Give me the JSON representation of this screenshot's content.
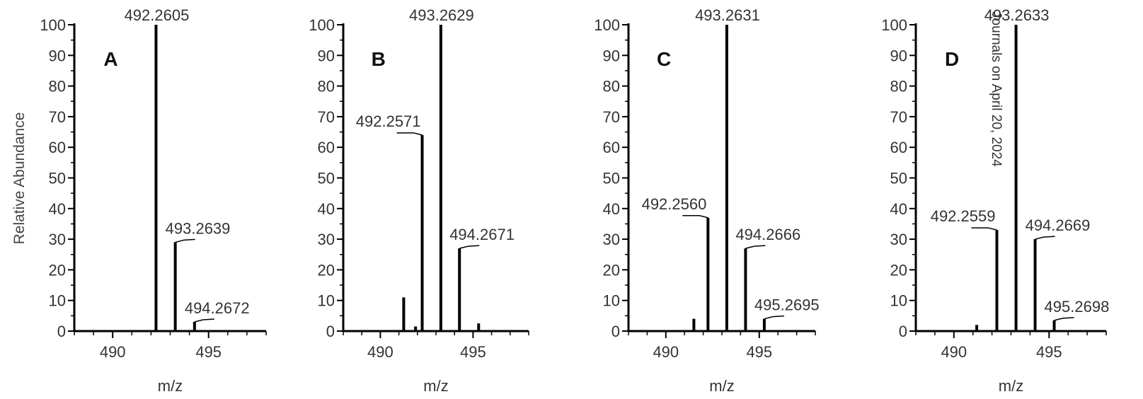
{
  "figure": {
    "ylabel": "Relative Abundance",
    "watermark": "Journals on April 20, 2024"
  },
  "chart_data": [
    {
      "type": "bar",
      "panel_label": "A",
      "xlabel": "m/z",
      "xlim": [
        488,
        498
      ],
      "ylim": [
        0,
        100
      ],
      "xticks": [
        490,
        495
      ],
      "yticks": [
        0,
        10,
        20,
        30,
        40,
        50,
        60,
        70,
        80,
        90,
        100
      ],
      "peaks": [
        {
          "mz": 492.2605,
          "abundance": 100,
          "label": "492.2605"
        },
        {
          "mz": 493.2639,
          "abundance": 29,
          "label": "493.2639"
        },
        {
          "mz": 494.2672,
          "abundance": 3,
          "label": "494.2672"
        }
      ]
    },
    {
      "type": "bar",
      "panel_label": "B",
      "xlabel": "m/z",
      "xlim": [
        488,
        498
      ],
      "ylim": [
        0,
        100
      ],
      "xticks": [
        490,
        495
      ],
      "yticks": [
        0,
        10,
        20,
        30,
        40,
        50,
        60,
        70,
        80,
        90,
        100
      ],
      "peaks": [
        {
          "mz": 491.26,
          "abundance": 11,
          "label": ""
        },
        {
          "mz": 491.9,
          "abundance": 1.5,
          "label": ""
        },
        {
          "mz": 492.2571,
          "abundance": 64,
          "label": "492.2571"
        },
        {
          "mz": 493.2629,
          "abundance": 100,
          "label": "493.2629"
        },
        {
          "mz": 494.2671,
          "abundance": 27,
          "label": "494.2671"
        },
        {
          "mz": 495.3,
          "abundance": 2.5,
          "label": ""
        }
      ]
    },
    {
      "type": "bar",
      "panel_label": "C",
      "xlabel": "m/z",
      "xlim": [
        488,
        498
      ],
      "ylim": [
        0,
        100
      ],
      "xticks": [
        490,
        495
      ],
      "yticks": [
        0,
        10,
        20,
        30,
        40,
        50,
        60,
        70,
        80,
        90,
        100
      ],
      "peaks": [
        {
          "mz": 491.5,
          "abundance": 4,
          "label": ""
        },
        {
          "mz": 492.256,
          "abundance": 37,
          "label": "492.2560"
        },
        {
          "mz": 493.2631,
          "abundance": 100,
          "label": "493.2631"
        },
        {
          "mz": 494.2666,
          "abundance": 27,
          "label": "494.2666"
        },
        {
          "mz": 495.2695,
          "abundance": 4,
          "label": "495.2695"
        }
      ]
    },
    {
      "type": "bar",
      "panel_label": "D",
      "xlabel": "m/z",
      "xlim": [
        488,
        498
      ],
      "ylim": [
        0,
        100
      ],
      "xticks": [
        490,
        495
      ],
      "yticks": [
        0,
        10,
        20,
        30,
        40,
        50,
        60,
        70,
        80,
        90,
        100
      ],
      "peaks": [
        {
          "mz": 491.2,
          "abundance": 2,
          "label": ""
        },
        {
          "mz": 492.2559,
          "abundance": 33,
          "label": "492.2559"
        },
        {
          "mz": 493.2633,
          "abundance": 100,
          "label": "493.2633"
        },
        {
          "mz": 494.2669,
          "abundance": 30,
          "label": "494.2669"
        },
        {
          "mz": 495.2698,
          "abundance": 3.5,
          "label": "495.2698"
        }
      ]
    }
  ]
}
